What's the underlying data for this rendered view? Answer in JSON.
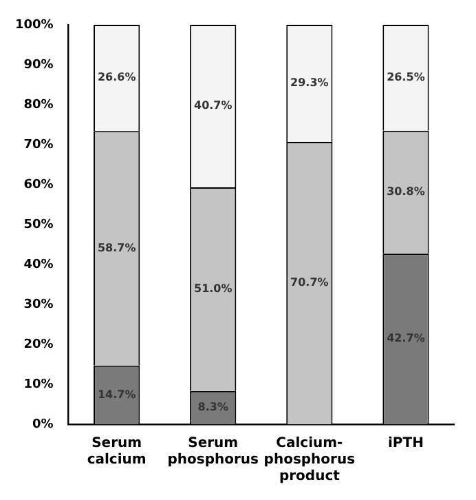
{
  "chart_data": {
    "type": "bar",
    "stacked": true,
    "categories": [
      "Serum calcium",
      "Serum phosphorus",
      "Calcium-phosphorus product",
      "iPTH"
    ],
    "series": [
      {
        "color": "#7a7a7a",
        "values": [
          14.7,
          8.3,
          null,
          42.7
        ],
        "value_labels": [
          "14.7%",
          "8.3%",
          null,
          "42.7%"
        ]
      },
      {
        "color": "#c4c4c4",
        "values": [
          58.7,
          51.0,
          70.7,
          30.8
        ],
        "value_labels": [
          "58.7%",
          "51.0%",
          "70.7%",
          "30.8%"
        ]
      },
      {
        "color": "#f4f4f4",
        "values": [
          26.6,
          40.7,
          29.3,
          26.5
        ],
        "value_labels": [
          "26.6%",
          "40.7%",
          "29.3%",
          "26.5%"
        ]
      }
    ],
    "ylim": [
      0,
      100
    ],
    "yticks": [
      {
        "value": 0,
        "label": "0%"
      },
      {
        "value": 10,
        "label": "10%"
      },
      {
        "value": 20,
        "label": "20%"
      },
      {
        "value": 30,
        "label": "30%"
      },
      {
        "value": 40,
        "label": "40%"
      },
      {
        "value": 50,
        "label": "50%"
      },
      {
        "value": 60,
        "label": "60%"
      },
      {
        "value": 70,
        "label": "70%"
      },
      {
        "value": 80,
        "label": "80%"
      },
      {
        "value": 90,
        "label": "90%"
      },
      {
        "value": 100,
        "label": "100%"
      }
    ],
    "grid": false,
    "legend": false
  }
}
